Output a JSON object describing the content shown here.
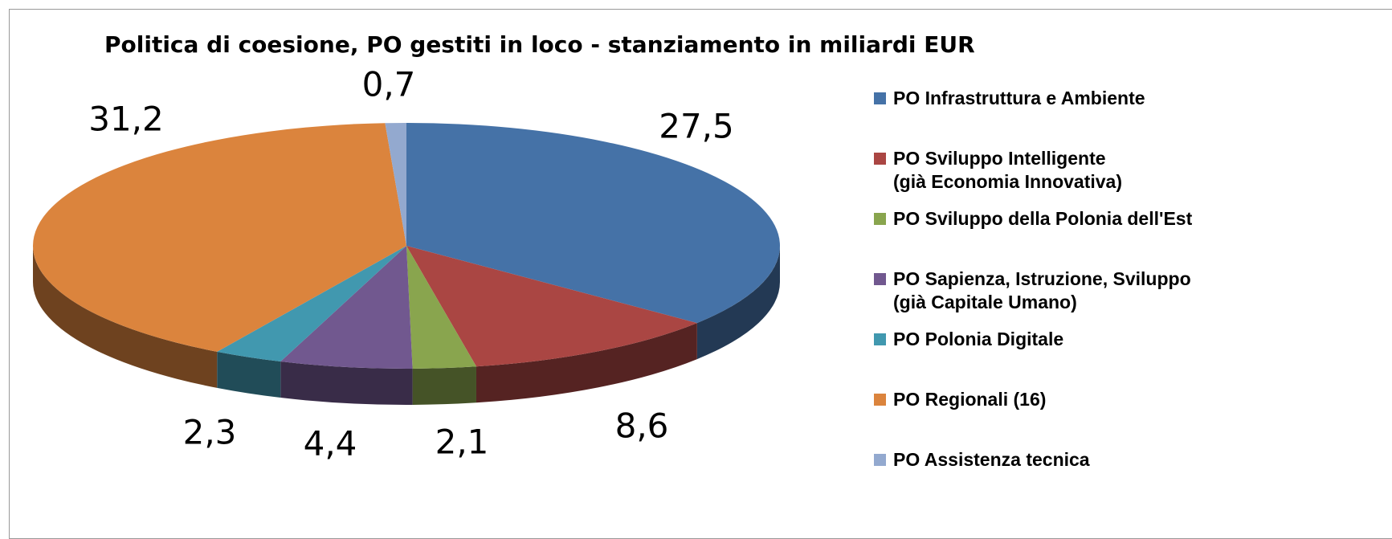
{
  "chart_data": {
    "type": "pie3d",
    "title": "Politica di coesione, PO gestiti in loco - stanziamento in miliardi EUR",
    "legend": "right",
    "series": [
      {
        "name": "PO Infrastruttura e Ambiente",
        "color": "#4572a7"
      },
      {
        "name": "PO Sviluppo Intelligente\n(già Economia Innovativa)",
        "color": "#aa4643"
      },
      {
        "name": "PO Sviluppo della Polonia dell'Est",
        "color": "#89a54e"
      },
      {
        "name": "PO Sapienza, Istruzione, Sviluppo\n(già Capitale Umano)",
        "color": "#71588f"
      },
      {
        "name": "PO Polonia Digitale",
        "color": "#4198af"
      },
      {
        "name": "PO Regionali (16)",
        "color": "#db843d"
      },
      {
        "name": "PO Assistenza tecnica",
        "color": "#93a9cf"
      }
    ],
    "values": [
      27.5,
      8.6,
      2.1,
      4.4,
      2.3,
      31.2,
      0.7
    ],
    "value_labels": [
      "27,5",
      "8,6",
      "2,1",
      "4,4",
      "2,3",
      "31,2",
      "0,7"
    ]
  }
}
